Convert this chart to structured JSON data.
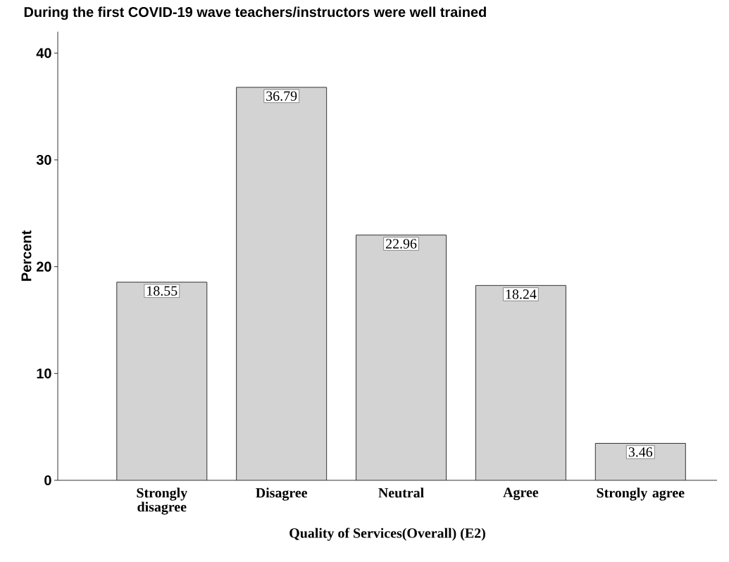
{
  "chart_data": {
    "type": "bar",
    "title": "During the first COVID-19 wave teachers/instructors were well trained",
    "xlabel": "Quality of Services(Overall) (E2)",
    "ylabel": "Percent",
    "categories": [
      "Strongly disagree",
      "Disagree",
      "Neutral",
      "Agree",
      "Strongly agree"
    ],
    "values": [
      18.55,
      36.79,
      22.96,
      18.24,
      3.46
    ],
    "value_labels": [
      "18.55",
      "36.79",
      "22.96",
      "18.24",
      "3.46"
    ],
    "color": "#d3d3d3",
    "ylim": [
      0,
      42
    ],
    "yticks": [
      0,
      10,
      20,
      30,
      40
    ],
    "grid": false
  }
}
